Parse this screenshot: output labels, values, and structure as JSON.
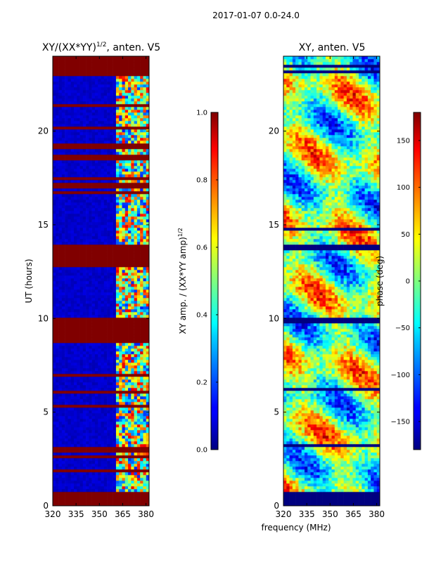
{
  "figure": {
    "suptitle": "2017-01-07 0.0-24.0",
    "xlabel_shared": "frequency (MHz)"
  },
  "chart_data": [
    {
      "type": "heatmap",
      "title": "XY/(XX*YY)",
      "title_sup": "1/2",
      "title_suffix": ", anten. V5",
      "xlabel": "",
      "ylabel": "UT (hours)",
      "xlim": [
        320,
        382
      ],
      "ylim": [
        0,
        24
      ],
      "xticks": [
        320,
        335,
        350,
        365,
        380
      ],
      "yticks": [
        0,
        5,
        10,
        15,
        20
      ],
      "colorbar": {
        "label": "XY amp. / (XX*YY amp)",
        "label_sup": "1/2",
        "range": [
          0.0,
          1.0
        ],
        "ticks": [
          "0.0",
          "0.2",
          "0.4",
          "0.6",
          "0.8",
          "1.0"
        ],
        "colormap": "jet"
      },
      "notes": "Mostly low values (~0.05); broadband flagged (1.0) rows at 0-0.8 h, 8.7-10.0 h, 12.7-14.0 h, 17.0-17.3 h and 23.0-24.0 h; high-frequency channels 361-382 MHz show variable 0.3-0.9 values."
    },
    {
      "type": "heatmap",
      "title": "XY, anten. V5",
      "xlabel": "",
      "ylabel": "",
      "xlim": [
        320,
        382
      ],
      "ylim": [
        0,
        24
      ],
      "xticks": [
        320,
        335,
        350,
        365,
        380
      ],
      "yticks": [
        0,
        5,
        10,
        15,
        20
      ],
      "colorbar": {
        "label": "phase (deg)",
        "range": [
          -180,
          180
        ],
        "ticks": [
          "−150",
          "−100",
          "−50",
          "0",
          "50",
          "100",
          "150"
        ],
        "colormap": "jet"
      },
      "notes": "Phase varies broadly between -180 and 180 deg; flagged (-180) bands at 0-0.8 h and 9.7-10.0 h; patches of +/-150 deg near 8.5 h, 14.5 h and 23 h."
    }
  ]
}
